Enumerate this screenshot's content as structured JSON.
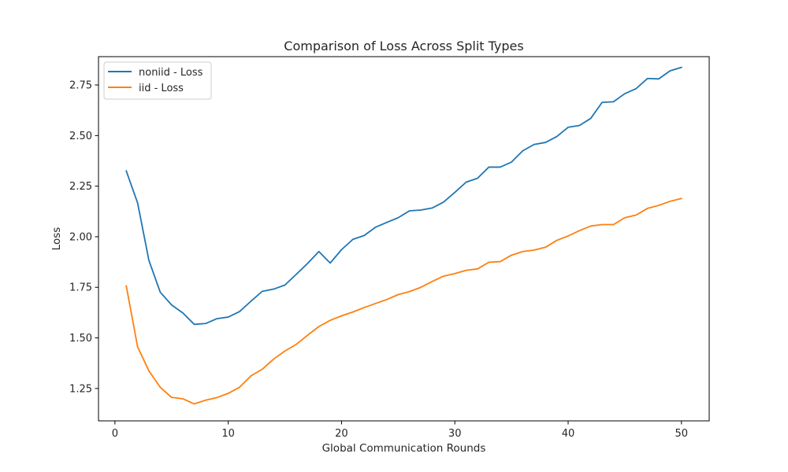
{
  "chart_data": {
    "type": "line",
    "title": "Comparison of Loss Across Split Types",
    "xlabel": "Global Communication Rounds",
    "ylabel": "Loss",
    "xlim": [
      -1.45,
      52.45
    ],
    "ylim": [
      1.09,
      2.89
    ],
    "xticks": [
      0,
      10,
      20,
      30,
      40,
      50
    ],
    "xtick_labels": [
      "0",
      "10",
      "20",
      "30",
      "40",
      "50"
    ],
    "yticks": [
      1.25,
      1.5,
      1.75,
      2.0,
      2.25,
      2.5,
      2.75
    ],
    "ytick_labels": [
      "1.25",
      "1.50",
      "1.75",
      "2.00",
      "2.25",
      "2.50",
      "2.75"
    ],
    "grid": false,
    "legend_position": "top-left",
    "x": [
      1,
      2,
      3,
      4,
      5,
      6,
      7,
      8,
      9,
      10,
      11,
      12,
      13,
      14,
      15,
      16,
      17,
      18,
      19,
      20,
      21,
      22,
      23,
      24,
      25,
      26,
      27,
      28,
      29,
      30,
      31,
      32,
      33,
      34,
      35,
      36,
      37,
      38,
      39,
      40,
      41,
      42,
      43,
      44,
      45,
      46,
      47,
      48,
      49,
      50
    ],
    "series": [
      {
        "name": "noniid - Loss",
        "color": "#1f77b4",
        "values": [
          2.325,
          2.167,
          1.883,
          1.726,
          1.663,
          1.623,
          1.567,
          1.571,
          1.595,
          1.603,
          1.63,
          1.681,
          1.73,
          1.741,
          1.761,
          1.814,
          1.868,
          1.927,
          1.87,
          1.936,
          1.987,
          2.006,
          2.047,
          2.071,
          2.094,
          2.128,
          2.132,
          2.142,
          2.171,
          2.219,
          2.27,
          2.289,
          2.344,
          2.344,
          2.369,
          2.425,
          2.456,
          2.466,
          2.495,
          2.541,
          2.55,
          2.585,
          2.664,
          2.667,
          2.707,
          2.732,
          2.782,
          2.78,
          2.82,
          2.837
        ]
      },
      {
        "name": "iid - Loss",
        "color": "#ff7f0e",
        "values": [
          1.757,
          1.456,
          1.337,
          1.256,
          1.206,
          1.199,
          1.174,
          1.192,
          1.205,
          1.226,
          1.256,
          1.312,
          1.345,
          1.395,
          1.435,
          1.468,
          1.513,
          1.556,
          1.587,
          1.609,
          1.628,
          1.65,
          1.67,
          1.69,
          1.714,
          1.729,
          1.75,
          1.779,
          1.805,
          1.818,
          1.834,
          1.841,
          1.874,
          1.877,
          1.909,
          1.927,
          1.934,
          1.948,
          1.982,
          2.004,
          2.03,
          2.053,
          2.06,
          2.06,
          2.094,
          2.107,
          2.14,
          2.155,
          2.175,
          2.189
        ]
      }
    ]
  }
}
